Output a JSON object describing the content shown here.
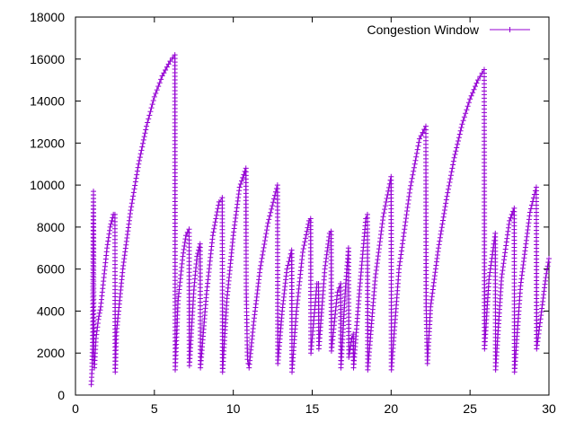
{
  "chart_data": {
    "type": "line",
    "title": "",
    "xlabel": "",
    "ylabel": "",
    "xlim": [
      0,
      30
    ],
    "ylim": [
      0,
      18000
    ],
    "x_ticks": [
      0,
      5,
      10,
      15,
      20,
      25,
      30
    ],
    "y_ticks": [
      0,
      2000,
      4000,
      6000,
      8000,
      10000,
      12000,
      14000,
      16000,
      18000
    ],
    "grid": false,
    "legend_position": "top-right",
    "marker": "plus",
    "series": [
      {
        "name": "Congestion Window",
        "color": "#9400d3",
        "points": [
          [
            1.0,
            500
          ],
          [
            1.05,
            1200
          ],
          [
            1.1,
            3000
          ],
          [
            1.12,
            6000
          ],
          [
            1.14,
            9700
          ],
          [
            1.16,
            2000
          ],
          [
            1.2,
            1300
          ],
          [
            1.3,
            2700
          ],
          [
            1.45,
            3600
          ],
          [
            1.6,
            4200
          ],
          [
            1.8,
            5600
          ],
          [
            2.0,
            7000
          ],
          [
            2.2,
            8000
          ],
          [
            2.4,
            8600
          ],
          [
            2.5,
            8600
          ],
          [
            2.52,
            1100
          ],
          [
            2.6,
            3000
          ],
          [
            3.0,
            6000
          ],
          [
            3.5,
            8800
          ],
          [
            4.0,
            11000
          ],
          [
            4.5,
            12800
          ],
          [
            5.0,
            14200
          ],
          [
            5.5,
            15200
          ],
          [
            6.0,
            15900
          ],
          [
            6.3,
            16200
          ],
          [
            6.32,
            1200
          ],
          [
            6.5,
            4500
          ],
          [
            6.8,
            6600
          ],
          [
            7.0,
            7600
          ],
          [
            7.2,
            7900
          ],
          [
            7.22,
            1400
          ],
          [
            7.5,
            5000
          ],
          [
            7.7,
            6600
          ],
          [
            7.9,
            7200
          ],
          [
            7.92,
            1300
          ],
          [
            8.3,
            4800
          ],
          [
            8.7,
            7600
          ],
          [
            9.1,
            9200
          ],
          [
            9.3,
            9400
          ],
          [
            9.32,
            1100
          ],
          [
            9.6,
            4600
          ],
          [
            10.0,
            7600
          ],
          [
            10.4,
            9900
          ],
          [
            10.8,
            10800
          ],
          [
            10.82,
            5000
          ],
          [
            10.9,
            1700
          ],
          [
            11.0,
            1300
          ],
          [
            11.3,
            3500
          ],
          [
            11.7,
            6000
          ],
          [
            12.2,
            8200
          ],
          [
            12.8,
            10000
          ],
          [
            12.82,
            1500
          ],
          [
            13.1,
            4000
          ],
          [
            13.4,
            6000
          ],
          [
            13.7,
            6900
          ],
          [
            13.72,
            1100
          ],
          [
            14.0,
            4000
          ],
          [
            14.4,
            6800
          ],
          [
            14.8,
            8300
          ],
          [
            14.9,
            8400
          ],
          [
            14.92,
            2000
          ],
          [
            15.3,
            5300
          ],
          [
            15.4,
            5300
          ],
          [
            15.42,
            2200
          ],
          [
            15.8,
            6000
          ],
          [
            16.1,
            7700
          ],
          [
            16.2,
            7800
          ],
          [
            16.22,
            2100
          ],
          [
            16.6,
            4900
          ],
          [
            16.8,
            5300
          ],
          [
            16.82,
            1300
          ],
          [
            17.1,
            5000
          ],
          [
            17.3,
            7000
          ],
          [
            17.32,
            1800
          ],
          [
            17.5,
            2700
          ],
          [
            17.6,
            2900
          ],
          [
            17.62,
            1300
          ],
          [
            18.0,
            5000
          ],
          [
            18.4,
            8400
          ],
          [
            18.5,
            8600
          ],
          [
            18.52,
            1200
          ],
          [
            19.0,
            5600
          ],
          [
            19.5,
            8500
          ],
          [
            20.0,
            10400
          ],
          [
            20.02,
            1200
          ],
          [
            20.5,
            6000
          ],
          [
            21.2,
            9800
          ],
          [
            21.8,
            12200
          ],
          [
            22.2,
            12800
          ],
          [
            22.22,
            4200
          ],
          [
            22.3,
            1500
          ],
          [
            22.5,
            4200
          ],
          [
            23.0,
            7000
          ],
          [
            23.5,
            9300
          ],
          [
            24.0,
            11300
          ],
          [
            24.5,
            12900
          ],
          [
            25.0,
            14100
          ],
          [
            25.5,
            15000
          ],
          [
            25.9,
            15500
          ],
          [
            25.92,
            2200
          ],
          [
            26.2,
            5500
          ],
          [
            26.6,
            7700
          ],
          [
            26.62,
            1200
          ],
          [
            27.0,
            5600
          ],
          [
            27.5,
            8300
          ],
          [
            27.8,
            8900
          ],
          [
            27.82,
            1100
          ],
          [
            28.2,
            5200
          ],
          [
            28.8,
            8700
          ],
          [
            29.2,
            9900
          ],
          [
            29.22,
            2200
          ],
          [
            29.5,
            3800
          ],
          [
            29.8,
            5600
          ],
          [
            30.0,
            6500
          ]
        ]
      }
    ]
  }
}
